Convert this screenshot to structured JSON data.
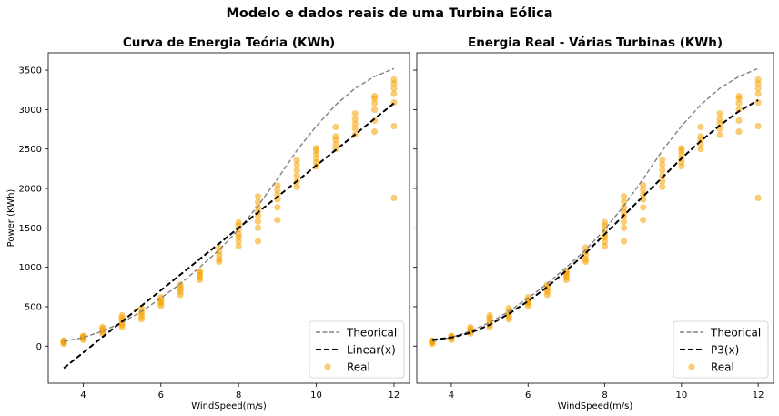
{
  "suptitle": "Modelo e dados reais de uma Turbina Eólica",
  "chart_data": [
    {
      "type": "scatter",
      "title": "Curva de Energia Teória (KWh)",
      "xlabel": "WindSpeed(m/s)",
      "ylabel": "Power (KWh)",
      "xlim": [
        3.1,
        12.4
      ],
      "ylim": [
        -470,
        3720
      ],
      "xticks": [
        "4",
        "6",
        "8",
        "10",
        "12"
      ],
      "yticks": [
        "0",
        "500",
        "1000",
        "1500",
        "2000",
        "2500",
        "3000",
        "3500"
      ],
      "legend_position": "lower-right",
      "legend": [
        "Theorical",
        "Linear(x)",
        "Real"
      ],
      "series": [
        {
          "name": "Theorical",
          "style": "dashed",
          "color": "#808080",
          "x": [
            3.5,
            4,
            4.5,
            5,
            5.5,
            6,
            6.5,
            7,
            7.5,
            8,
            8.5,
            9,
            9.5,
            10,
            10.5,
            11,
            11.5,
            12
          ],
          "y": [
            60,
            110,
            190,
            300,
            440,
            610,
            790,
            1000,
            1220,
            1480,
            1780,
            2120,
            2480,
            2790,
            3060,
            3270,
            3420,
            3520
          ]
        },
        {
          "name": "Linear(x)",
          "style": "dashed-bold",
          "color": "#000000",
          "x": [
            3.5,
            12
          ],
          "y": [
            -280,
            3080
          ]
        },
        {
          "name": "Real",
          "style": "scatter",
          "color": "#f5a300",
          "points": [
            [
              3.5,
              30
            ],
            [
              3.5,
              45
            ],
            [
              3.5,
              55
            ],
            [
              3.5,
              65
            ],
            [
              3.5,
              70
            ],
            [
              4,
              80
            ],
            [
              4,
              100
            ],
            [
              4,
              110
            ],
            [
              4,
              120
            ],
            [
              4,
              130
            ],
            [
              4.5,
              160
            ],
            [
              4.5,
              180
            ],
            [
              4.5,
              200
            ],
            [
              4.5,
              220
            ],
            [
              4.5,
              240
            ],
            [
              5,
              240
            ],
            [
              5,
              270
            ],
            [
              5,
              300
            ],
            [
              5,
              330
            ],
            [
              5,
              360
            ],
            [
              5,
              390
            ],
            [
              5.5,
              340
            ],
            [
              5.5,
              380
            ],
            [
              5.5,
              410
            ],
            [
              5.5,
              440
            ],
            [
              5.5,
              480
            ],
            [
              6,
              510
            ],
            [
              6,
              540
            ],
            [
              6,
              560
            ],
            [
              6,
              590
            ],
            [
              6,
              620
            ],
            [
              6.5,
              650
            ],
            [
              6.5,
              690
            ],
            [
              6.5,
              720
            ],
            [
              6.5,
              750
            ],
            [
              6.5,
              780
            ],
            [
              7,
              840
            ],
            [
              7,
              870
            ],
            [
              7,
              900
            ],
            [
              7,
              930
            ],
            [
              7,
              950
            ],
            [
              7.5,
              1070
            ],
            [
              7.5,
              1100
            ],
            [
              7.5,
              1150
            ],
            [
              7.5,
              1200
            ],
            [
              7.5,
              1250
            ],
            [
              8,
              1270
            ],
            [
              8,
              1330
            ],
            [
              8,
              1380
            ],
            [
              8,
              1420
            ],
            [
              8,
              1480
            ],
            [
              8,
              1530
            ],
            [
              8,
              1570
            ],
            [
              8.5,
              1330
            ],
            [
              8.5,
              1500
            ],
            [
              8.5,
              1580
            ],
            [
              8.5,
              1650
            ],
            [
              8.5,
              1700
            ],
            [
              8.5,
              1760
            ],
            [
              8.5,
              1830
            ],
            [
              8.5,
              1900
            ],
            [
              9,
              1600
            ],
            [
              9,
              1760
            ],
            [
              9,
              1860
            ],
            [
              9,
              1920
            ],
            [
              9,
              1980
            ],
            [
              9,
              2040
            ],
            [
              9.5,
              2020
            ],
            [
              9.5,
              2090
            ],
            [
              9.5,
              2160
            ],
            [
              9.5,
              2230
            ],
            [
              9.5,
              2300
            ],
            [
              9.5,
              2360
            ],
            [
              10,
              2280
            ],
            [
              10,
              2330
            ],
            [
              10,
              2380
            ],
            [
              10,
              2430
            ],
            [
              10,
              2480
            ],
            [
              10,
              2510
            ],
            [
              10.5,
              2500
            ],
            [
              10.5,
              2560
            ],
            [
              10.5,
              2620
            ],
            [
              10.5,
              2660
            ],
            [
              10.5,
              2780
            ],
            [
              11,
              2680
            ],
            [
              11,
              2760
            ],
            [
              11,
              2820
            ],
            [
              11,
              2880
            ],
            [
              11,
              2950
            ],
            [
              11.5,
              2720
            ],
            [
              11.5,
              2860
            ],
            [
              11.5,
              3000
            ],
            [
              11.5,
              3080
            ],
            [
              11.5,
              3140
            ],
            [
              11.5,
              3170
            ],
            [
              12,
              1880
            ],
            [
              12,
              2790
            ],
            [
              12,
              3090
            ],
            [
              12,
              3200
            ],
            [
              12,
              3270
            ],
            [
              12,
              3330
            ],
            [
              12,
              3380
            ]
          ]
        }
      ]
    },
    {
      "type": "scatter",
      "title": "Energia Real - Várias Turbinas (KWh)",
      "xlabel": "WindSpeed(m/s)",
      "ylabel": "",
      "xlim": [
        3.1,
        12.4
      ],
      "ylim": [
        -470,
        3720
      ],
      "xticks": [
        "4",
        "6",
        "8",
        "10",
        "12"
      ],
      "shared_y": true,
      "legend_position": "lower-right",
      "legend": [
        "Theorical",
        "P3(x)",
        "Real"
      ],
      "series": [
        {
          "name": "Theorical",
          "style": "dashed",
          "color": "#808080",
          "x": [
            3.5,
            4,
            4.5,
            5,
            5.5,
            6,
            6.5,
            7,
            7.5,
            8,
            8.5,
            9,
            9.5,
            10,
            10.5,
            11,
            11.5,
            12
          ],
          "y": [
            60,
            110,
            190,
            300,
            440,
            610,
            790,
            1000,
            1220,
            1480,
            1780,
            2120,
            2480,
            2790,
            3060,
            3270,
            3420,
            3520
          ]
        },
        {
          "name": "P3(x)",
          "style": "dashed-bold",
          "color": "#000000",
          "x": [
            3.5,
            4,
            4.5,
            5,
            5.5,
            6,
            6.5,
            7,
            7.5,
            8,
            8.5,
            9,
            9.5,
            10,
            10.5,
            11,
            11.5,
            12
          ],
          "y": [
            80,
            110,
            170,
            270,
            410,
            570,
            750,
            960,
            1180,
            1420,
            1660,
            1900,
            2140,
            2380,
            2600,
            2800,
            2980,
            3120
          ]
        },
        {
          "name": "Real",
          "style": "scatter",
          "color": "#f5a300",
          "points": [
            [
              3.5,
              30
            ],
            [
              3.5,
              45
            ],
            [
              3.5,
              55
            ],
            [
              3.5,
              65
            ],
            [
              3.5,
              70
            ],
            [
              4,
              80
            ],
            [
              4,
              100
            ],
            [
              4,
              110
            ],
            [
              4,
              120
            ],
            [
              4,
              130
            ],
            [
              4.5,
              160
            ],
            [
              4.5,
              180
            ],
            [
              4.5,
              200
            ],
            [
              4.5,
              220
            ],
            [
              4.5,
              240
            ],
            [
              5,
              240
            ],
            [
              5,
              270
            ],
            [
              5,
              300
            ],
            [
              5,
              330
            ],
            [
              5,
              360
            ],
            [
              5,
              390
            ],
            [
              5.5,
              340
            ],
            [
              5.5,
              380
            ],
            [
              5.5,
              410
            ],
            [
              5.5,
              440
            ],
            [
              5.5,
              480
            ],
            [
              6,
              510
            ],
            [
              6,
              540
            ],
            [
              6,
              560
            ],
            [
              6,
              590
            ],
            [
              6,
              620
            ],
            [
              6.5,
              650
            ],
            [
              6.5,
              690
            ],
            [
              6.5,
              720
            ],
            [
              6.5,
              750
            ],
            [
              6.5,
              780
            ],
            [
              7,
              840
            ],
            [
              7,
              870
            ],
            [
              7,
              900
            ],
            [
              7,
              930
            ],
            [
              7,
              950
            ],
            [
              7.5,
              1070
            ],
            [
              7.5,
              1100
            ],
            [
              7.5,
              1150
            ],
            [
              7.5,
              1200
            ],
            [
              7.5,
              1250
            ],
            [
              8,
              1270
            ],
            [
              8,
              1330
            ],
            [
              8,
              1380
            ],
            [
              8,
              1420
            ],
            [
              8,
              1480
            ],
            [
              8,
              1530
            ],
            [
              8,
              1570
            ],
            [
              8.5,
              1330
            ],
            [
              8.5,
              1500
            ],
            [
              8.5,
              1580
            ],
            [
              8.5,
              1650
            ],
            [
              8.5,
              1700
            ],
            [
              8.5,
              1760
            ],
            [
              8.5,
              1830
            ],
            [
              8.5,
              1900
            ],
            [
              9,
              1600
            ],
            [
              9,
              1760
            ],
            [
              9,
              1860
            ],
            [
              9,
              1920
            ],
            [
              9,
              1980
            ],
            [
              9,
              2040
            ],
            [
              9.5,
              2020
            ],
            [
              9.5,
              2090
            ],
            [
              9.5,
              2160
            ],
            [
              9.5,
              2230
            ],
            [
              9.5,
              2300
            ],
            [
              9.5,
              2360
            ],
            [
              10,
              2280
            ],
            [
              10,
              2330
            ],
            [
              10,
              2380
            ],
            [
              10,
              2430
            ],
            [
              10,
              2480
            ],
            [
              10,
              2510
            ],
            [
              10.5,
              2500
            ],
            [
              10.5,
              2560
            ],
            [
              10.5,
              2620
            ],
            [
              10.5,
              2660
            ],
            [
              10.5,
              2780
            ],
            [
              11,
              2680
            ],
            [
              11,
              2760
            ],
            [
              11,
              2820
            ],
            [
              11,
              2880
            ],
            [
              11,
              2950
            ],
            [
              11.5,
              2720
            ],
            [
              11.5,
              2860
            ],
            [
              11.5,
              3000
            ],
            [
              11.5,
              3080
            ],
            [
              11.5,
              3140
            ],
            [
              11.5,
              3170
            ],
            [
              12,
              1880
            ],
            [
              12,
              2790
            ],
            [
              12,
              3090
            ],
            [
              12,
              3200
            ],
            [
              12,
              3270
            ],
            [
              12,
              3330
            ],
            [
              12,
              3380
            ]
          ]
        }
      ]
    }
  ]
}
